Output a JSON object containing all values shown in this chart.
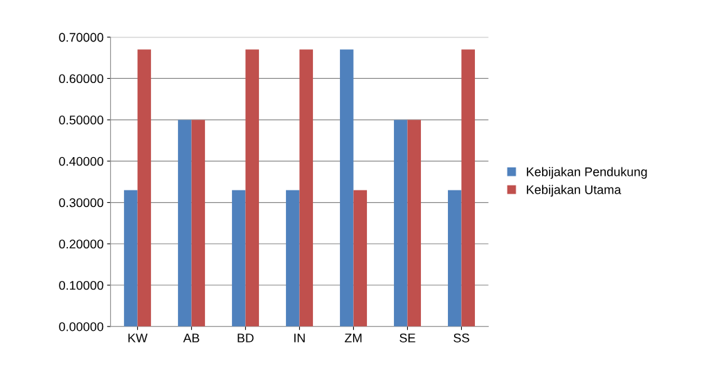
{
  "chart_data": {
    "type": "bar",
    "categories": [
      "KW",
      "AB",
      "BD",
      "IN",
      "ZM",
      "SE",
      "SS"
    ],
    "series": [
      {
        "name": "Kebijakan Pendukung",
        "color": "#4f81bd",
        "values": [
          0.33,
          0.5,
          0.33,
          0.33,
          0.67,
          0.5,
          0.33
        ]
      },
      {
        "name": "Kebijakan Utama",
        "color": "#c0504d",
        "values": [
          0.67,
          0.5,
          0.67,
          0.67,
          0.33,
          0.5,
          0.67
        ]
      }
    ],
    "ylim": [
      0,
      0.7
    ],
    "yticks": [
      {
        "value": 0,
        "label": "0.00000"
      },
      {
        "value": 0.1,
        "label": "0.10000"
      },
      {
        "value": 0.2,
        "label": "0.20000"
      },
      {
        "value": 0.3,
        "label": "0.30000"
      },
      {
        "value": 0.4,
        "label": "0.40000"
      },
      {
        "value": 0.5,
        "label": "0.50000"
      },
      {
        "value": 0.6,
        "label": "0.60000"
      },
      {
        "value": 0.7,
        "label": "0.70000"
      }
    ],
    "grid": "y",
    "legend": "right"
  }
}
